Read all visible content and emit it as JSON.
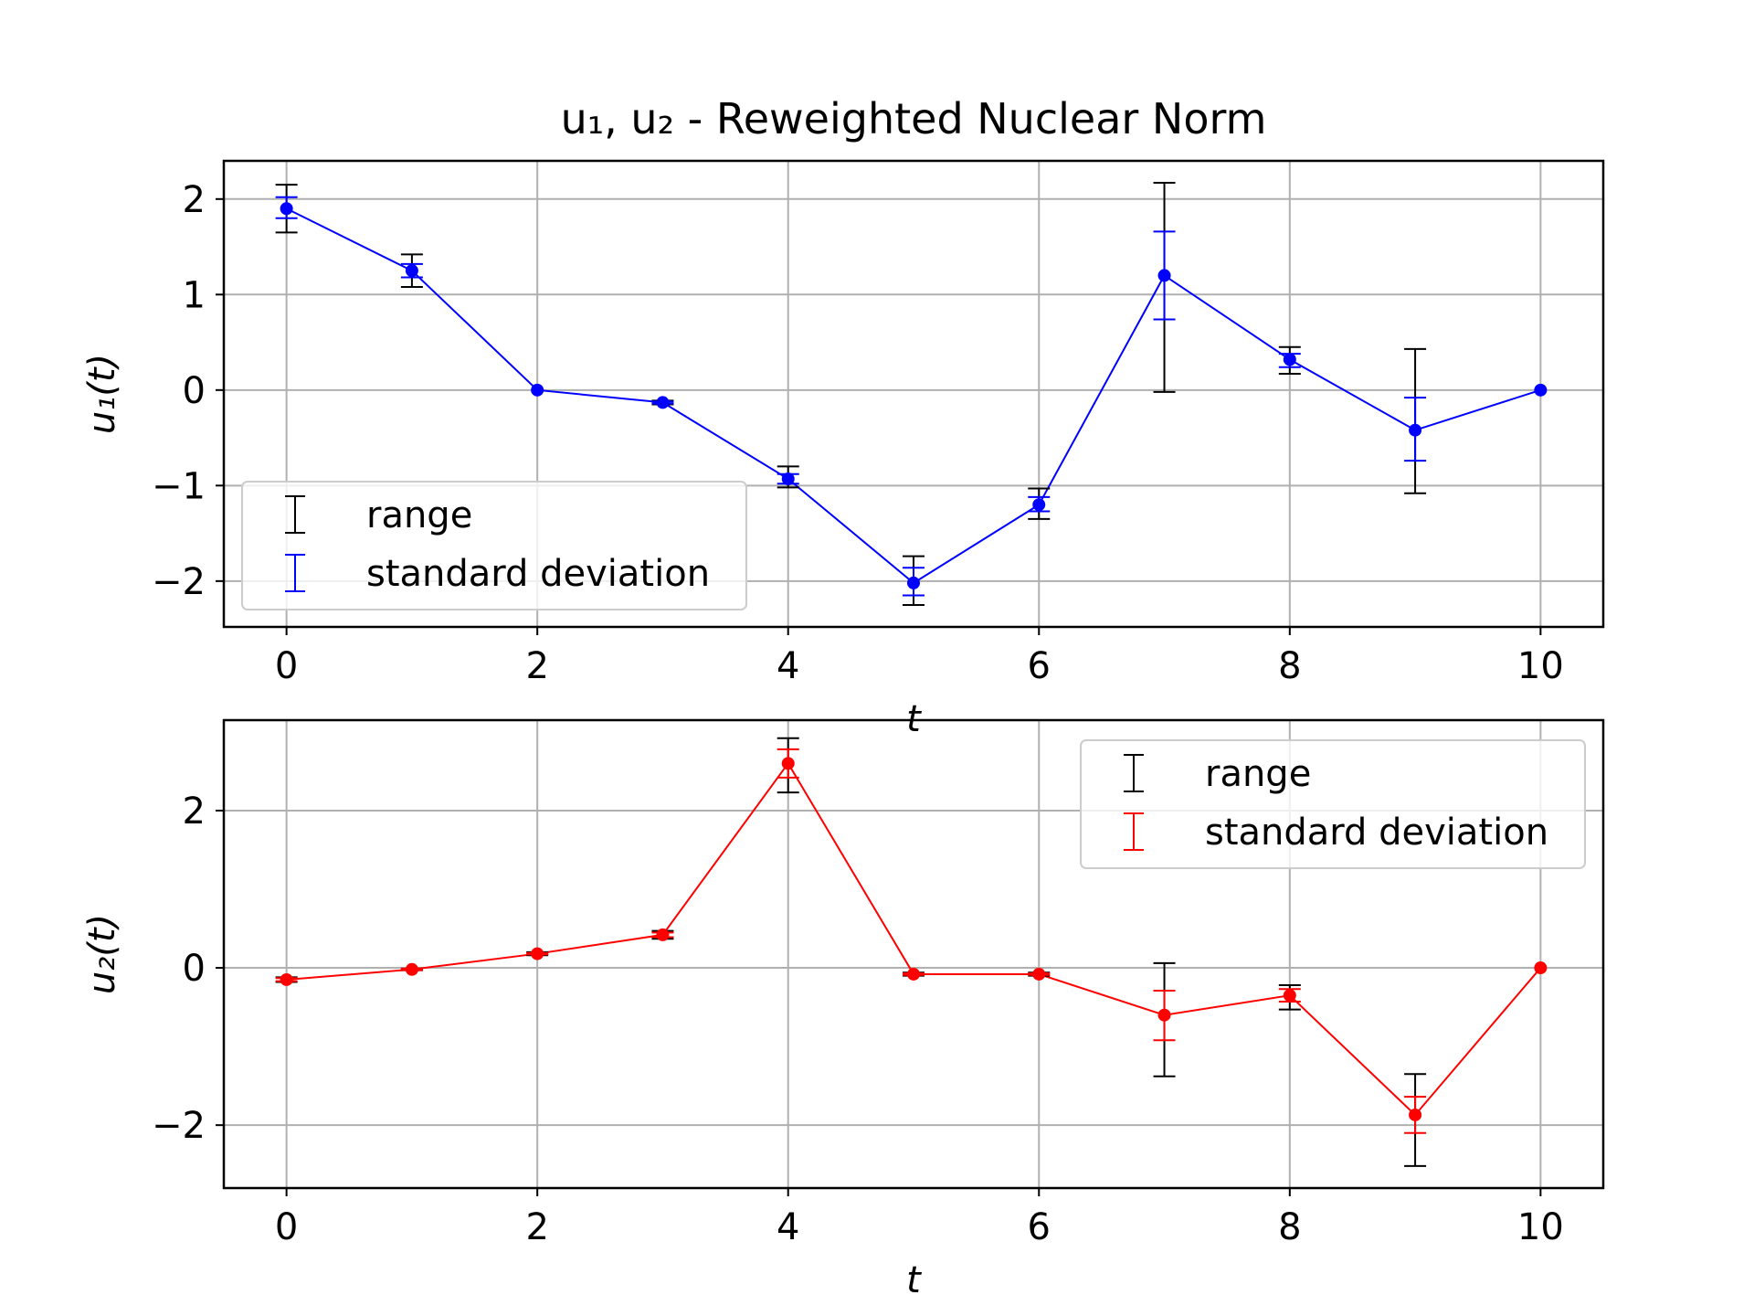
{
  "title": "u₁, u₂ - Reweighted Nuclear Norm",
  "chart_data": [
    {
      "type": "line",
      "subtype": "errorbar",
      "xlabel": "t",
      "ylabel": "u₁(t)",
      "xlim": [
        -0.5,
        10.5
      ],
      "ylim": [
        -2.48,
        2.4
      ],
      "xticks": [
        0,
        2,
        4,
        6,
        8,
        10
      ],
      "xtick_labels": [
        "0",
        "2",
        "4",
        "6",
        "8",
        "10"
      ],
      "yticks": [
        -2,
        -1,
        0,
        1,
        2
      ],
      "ytick_labels": [
        "−2",
        "−1",
        "0",
        "1",
        "2"
      ],
      "grid": true,
      "legend_position": "lower-left",
      "legend": [
        "range",
        "standard deviation"
      ],
      "color": "#0000ff",
      "range_color": "#000000",
      "x": [
        0,
        1,
        2,
        3,
        4,
        5,
        6,
        7,
        8,
        9,
        10
      ],
      "y": [
        1.9,
        1.25,
        0.0,
        -0.13,
        -0.93,
        -2.02,
        -1.2,
        1.2,
        0.32,
        -0.42,
        0.0
      ],
      "range": [
        [
          1.65,
          2.15
        ],
        [
          1.08,
          1.42
        ],
        [
          0.0,
          0.0
        ],
        [
          -0.15,
          -0.11
        ],
        [
          -1.02,
          -0.8
        ],
        [
          -2.25,
          -1.74
        ],
        [
          -1.35,
          -1.03
        ],
        [
          -0.02,
          2.17
        ],
        [
          0.17,
          0.45
        ],
        [
          -1.08,
          0.43
        ],
        [
          0.0,
          0.0
        ]
      ],
      "std": [
        [
          1.8,
          2.02
        ],
        [
          1.18,
          1.32
        ],
        [
          0.0,
          0.0
        ],
        [
          -0.14,
          -0.12
        ],
        [
          -0.98,
          -0.88
        ],
        [
          -2.15,
          -1.86
        ],
        [
          -1.27,
          -1.12
        ],
        [
          0.74,
          1.66
        ],
        [
          0.24,
          0.38
        ],
        [
          -0.74,
          -0.08
        ],
        [
          0.0,
          0.0
        ]
      ]
    },
    {
      "type": "line",
      "subtype": "errorbar",
      "xlabel": "t",
      "ylabel": "u₂(t)",
      "xlim": [
        -0.5,
        10.5
      ],
      "ylim": [
        -2.8,
        3.15
      ],
      "xticks": [
        0,
        2,
        4,
        6,
        8,
        10
      ],
      "xtick_labels": [
        "0",
        "2",
        "4",
        "6",
        "8",
        "10"
      ],
      "yticks": [
        -2,
        0,
        2
      ],
      "ytick_labels": [
        "−2",
        "0",
        "2"
      ],
      "grid": true,
      "legend_position": "upper-right",
      "legend": [
        "range",
        "standard deviation"
      ],
      "color": "#ff0000",
      "range_color": "#000000",
      "x": [
        0,
        1,
        2,
        3,
        4,
        5,
        6,
        7,
        8,
        9,
        10
      ],
      "y": [
        -0.15,
        -0.02,
        0.18,
        0.42,
        2.6,
        -0.08,
        -0.08,
        -0.6,
        -0.35,
        -1.87,
        0.0
      ],
      "range": [
        [
          -0.18,
          -0.12
        ],
        [
          -0.03,
          -0.01
        ],
        [
          0.16,
          0.2
        ],
        [
          0.37,
          0.47
        ],
        [
          2.23,
          2.92
        ],
        [
          -0.1,
          -0.06
        ],
        [
          -0.1,
          -0.06
        ],
        [
          -1.38,
          0.06
        ],
        [
          -0.53,
          -0.22
        ],
        [
          -2.52,
          -1.35
        ],
        [
          0.0,
          0.0
        ]
      ],
      "std": [
        [
          -0.17,
          -0.13
        ],
        [
          -0.03,
          -0.01
        ],
        [
          0.17,
          0.19
        ],
        [
          0.39,
          0.45
        ],
        [
          2.42,
          2.78
        ],
        [
          -0.09,
          -0.07
        ],
        [
          -0.09,
          -0.07
        ],
        [
          -0.92,
          -0.29
        ],
        [
          -0.43,
          -0.27
        ],
        [
          -2.1,
          -1.64
        ],
        [
          0.0,
          0.0
        ]
      ]
    }
  ]
}
